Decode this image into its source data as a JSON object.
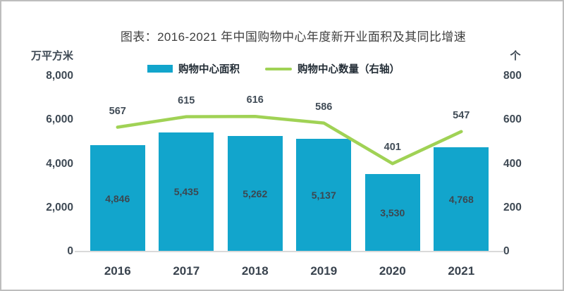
{
  "title": "图表：2016-2021 年中国购物中心年度新开业面积及其同比增速",
  "legend": [
    {
      "label": "购物中心面积",
      "swatch": "bar",
      "color": "#12a5cc"
    },
    {
      "label": "购物中心数量（右轴）",
      "swatch": "line",
      "color": "#a0d255"
    }
  ],
  "left_axis": {
    "unit": "万平方米",
    "ticks": [
      "8,000",
      "6,000",
      "4,000",
      "2,000",
      "0"
    ]
  },
  "right_axis": {
    "unit": "个",
    "ticks": [
      "800",
      "600",
      "400",
      "200",
      "0"
    ]
  },
  "chart_data": {
    "type": "bar",
    "categories": [
      "2016",
      "2017",
      "2018",
      "2019",
      "2020",
      "2021"
    ],
    "series": [
      {
        "name": "购物中心面积",
        "type": "bar",
        "axis": "left",
        "color": "#12a5cc",
        "values": [
          4846,
          5435,
          5262,
          5137,
          3530,
          4768
        ],
        "labels": [
          "4,846",
          "5,435",
          "5,262",
          "5,137",
          "3,530",
          "4,768"
        ]
      },
      {
        "name": "购物中心数量（右轴）",
        "type": "line",
        "axis": "right",
        "color": "#a0d255",
        "values": [
          567,
          615,
          616,
          586,
          401,
          547
        ],
        "labels": [
          "567",
          "615",
          "616",
          "586",
          "401",
          "547"
        ]
      }
    ],
    "title": "图表：2016-2021 年中国购物中心年度新开业面积及其同比增速",
    "xlabel": "",
    "ylabel_left": "万平方米",
    "ylabel_right": "个",
    "left_ylim": [
      0,
      8000
    ],
    "right_ylim": [
      0,
      800
    ],
    "grid": false,
    "legend_position": "top"
  },
  "colors": {
    "bar": "#12a5cc",
    "line": "#a0d255",
    "baseline": "#d9d9d9",
    "text": "#3e4954",
    "frame_border": "#bdbdbd"
  }
}
